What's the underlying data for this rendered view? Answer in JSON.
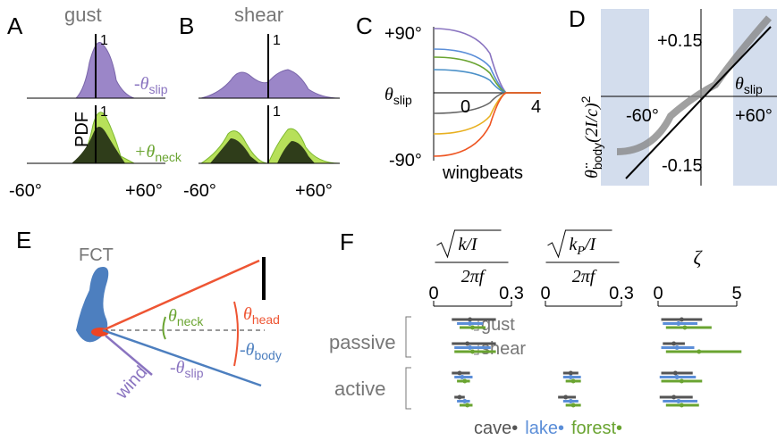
{
  "panels": {
    "A": {
      "label": "A",
      "title": "gust",
      "top_tick": "1",
      "top_name": {
        "symbol": "-θ",
        "subscript": "slip"
      },
      "bottom_tick": "1",
      "ylabel": "PDF",
      "bottom_name": {
        "symbol": "+θ",
        "subscript": "neck"
      },
      "xticks": [
        "-60°",
        "+60°"
      ]
    },
    "B": {
      "label": "B",
      "title": "shear",
      "top_tick": "1",
      "bottom_tick": "1",
      "xticks": [
        "-60°",
        "+60°"
      ]
    },
    "C": {
      "label": "C",
      "yticks": [
        "+90°",
        "-90°"
      ],
      "ylabel": {
        "symbol": "θ",
        "subscript": "slip"
      },
      "xticks": [
        "0",
        "4"
      ],
      "xlabel": "wingbeats"
    },
    "D": {
      "label": "D",
      "yticks": [
        "+0.15",
        "-0.15"
      ],
      "xticks": [
        "-60°",
        "+60°"
      ],
      "xlabel": {
        "symbol": "θ",
        "subscript": "slip"
      },
      "ylabel": {
        "symbol": "θ̈",
        "subscript": "body",
        "rest": "(2I/c)",
        "power": "2"
      }
    },
    "E": {
      "label": "E",
      "fct": "FCT",
      "neck": {
        "symbol": "θ",
        "subscript": "neck"
      },
      "head": {
        "symbol": "θ",
        "subscript": "head"
      },
      "body": {
        "symbol": "-θ",
        "subscript": "body"
      },
      "slip": {
        "symbol": "-θ",
        "subscript": "slip"
      },
      "wind": "wind"
    },
    "F": {
      "label": "F",
      "groups": [
        "passive",
        "active"
      ],
      "conditions": [
        "gust",
        "shear"
      ],
      "legend": [
        {
          "name": "cave",
          "color": "#555555"
        },
        {
          "name": "lake",
          "color": "#5b8ed8"
        },
        {
          "name": "forest",
          "color": "#6aa431"
        }
      ],
      "metrics": [
        {
          "numerator": "k/I",
          "sub": "",
          "rest": "",
          "denominator": "2πf",
          "xlim": [
            0,
            0.3
          ],
          "xticks": [
            0,
            0.3
          ],
          "rows": [
            [
              [
                0.07,
                0.14,
                0.24
              ],
              [
                0.09,
                0.14,
                0.19
              ],
              [
                0.1,
                0.15,
                0.2
              ]
            ],
            [
              [
                0.07,
                0.13,
                0.24
              ],
              [
                0.08,
                0.14,
                0.22
              ],
              [
                0.08,
                0.15,
                0.24
              ]
            ],
            [
              [
                0.07,
                0.1,
                0.14
              ],
              [
                0.08,
                0.11,
                0.15
              ],
              [
                0.09,
                0.12,
                0.14
              ]
            ],
            [
              [
                0.08,
                0.1,
                0.12
              ],
              [
                0.09,
                0.12,
                0.14
              ],
              [
                0.1,
                0.13,
                0.15
              ]
            ]
          ]
        },
        {
          "numerator": "k",
          "sub": "P",
          "rest": "/I",
          "denominator": "2πf",
          "xlim": [
            0,
            0.3
          ],
          "xticks": [
            0,
            0.3
          ],
          "rows": [
            null,
            null,
            [
              [
                0.07,
                0.1,
                0.13
              ],
              [
                0.07,
                0.1,
                0.14
              ],
              [
                0.08,
                0.11,
                0.14
              ]
            ],
            [
              [
                0.05,
                0.08,
                0.12
              ],
              [
                0.07,
                0.1,
                0.13
              ],
              [
                0.08,
                0.11,
                0.14
              ]
            ]
          ]
        },
        {
          "symbol": "ζ",
          "xlim": [
            0,
            5
          ],
          "xticks": [
            0,
            5
          ],
          "rows": [
            [
              [
                0.2,
                1.5,
                2.8
              ],
              [
                0.3,
                1.3,
                2.5
              ],
              [
                0.5,
                1.7,
                3.4
              ]
            ],
            [
              [
                0.3,
                1,
                1.7
              ],
              [
                0.2,
                1.2,
                2.3
              ],
              [
                0.5,
                2.6,
                5.3
              ]
            ],
            [
              [
                0.2,
                1.1,
                2.2
              ],
              [
                0.1,
                1.2,
                2.4
              ],
              [
                0.2,
                1.5,
                2.8
              ]
            ],
            [
              [
                0.1,
                1,
                2.2
              ],
              [
                0.3,
                1.3,
                2.5
              ],
              [
                0.5,
                1.5,
                2.6
              ]
            ]
          ]
        }
      ]
    }
  }
}
